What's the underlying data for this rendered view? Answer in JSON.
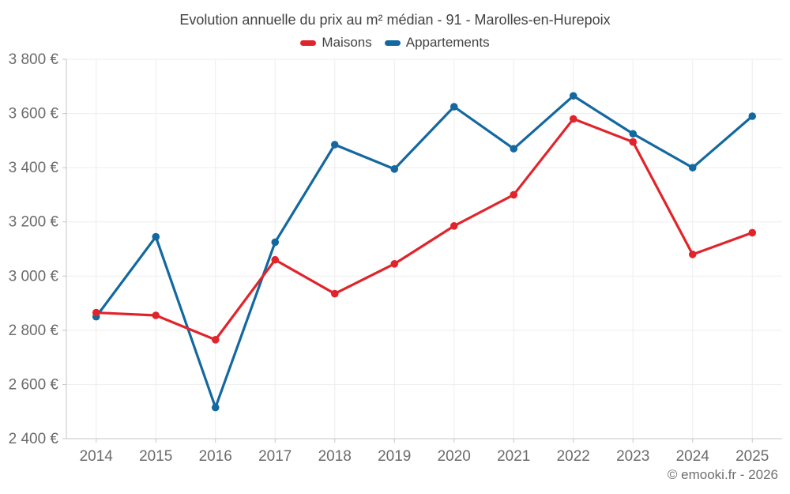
{
  "chart_data": {
    "type": "line",
    "title": "Evolution annuelle du prix au m² médian - 91 - Marolles-en-Hurepoix",
    "xlabel": "",
    "ylabel": "",
    "categories": [
      "2014",
      "2015",
      "2016",
      "2017",
      "2018",
      "2019",
      "2020",
      "2021",
      "2022",
      "2023",
      "2024",
      "2025"
    ],
    "series": [
      {
        "name": "Maisons",
        "color": "#e1242b",
        "values": [
          2865,
          2855,
          2765,
          3060,
          2935,
          3045,
          3185,
          3300,
          3580,
          3495,
          3080,
          3160
        ]
      },
      {
        "name": "Appartements",
        "color": "#1368a0",
        "values": [
          2850,
          3145,
          2515,
          3125,
          3485,
          3395,
          3625,
          3470,
          3665,
          3525,
          3400,
          3590
        ]
      }
    ],
    "ylim": [
      2400,
      3800
    ],
    "ytick_step": 200,
    "yticks": [
      {
        "value": 2400,
        "label": "2 400 €"
      },
      {
        "value": 2600,
        "label": "2 600 €"
      },
      {
        "value": 2800,
        "label": "2 800 €"
      },
      {
        "value": 3000,
        "label": "3 000 €"
      },
      {
        "value": 3200,
        "label": "3 200 €"
      },
      {
        "value": 3400,
        "label": "3 400 €"
      },
      {
        "value": 3600,
        "label": "3 600 €"
      },
      {
        "value": 3800,
        "label": "3 800 €"
      }
    ],
    "grid": true,
    "legend_position": "top"
  },
  "footer": {
    "copyright": "© emooki.fr - 2026"
  },
  "colors": {
    "background": "#ffffff",
    "gridline": "#ededed",
    "axis": "#c6c6c6",
    "tick_label": "#6b6b6b",
    "title_text": "#424242",
    "footer_text": "#6f6f6f"
  }
}
